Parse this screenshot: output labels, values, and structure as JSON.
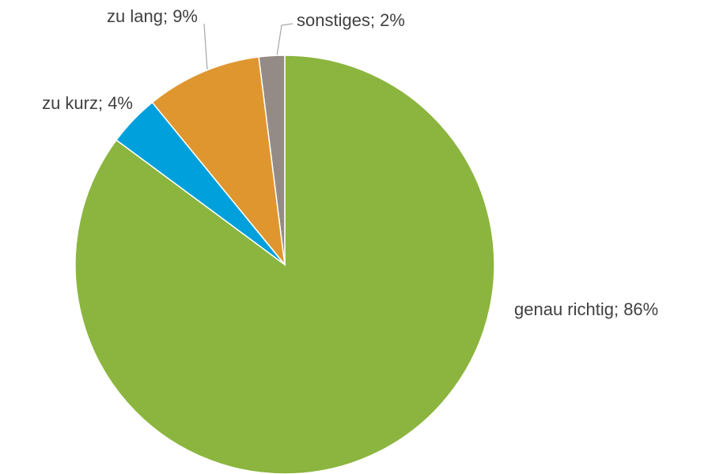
{
  "chart_data": {
    "type": "pie",
    "values": [
      86,
      4,
      9,
      2
    ],
    "value_labels": [
      "genau richtig; 86%",
      "zu kurz; 4%",
      "zu lang; 9%",
      "sonstiges; 2%"
    ],
    "colors": [
      "#8bb53e",
      "#00a0dc",
      "#e0962f",
      "#948a86"
    ]
  }
}
